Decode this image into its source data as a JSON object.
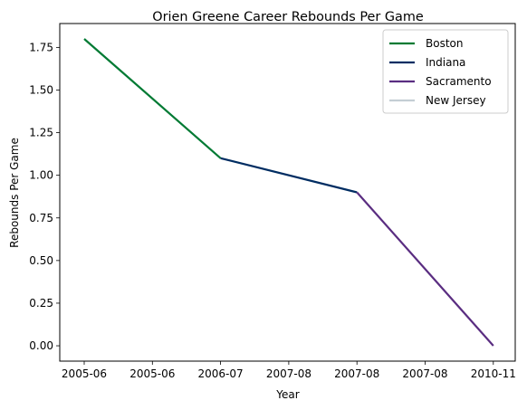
{
  "chart_data": {
    "type": "line",
    "title": "Orien Greene Career Rebounds Per Game",
    "xlabel": "Year",
    "ylabel": "Rebounds Per Game",
    "x_tick_labels": [
      "2005-06",
      "2005-06",
      "2006-07",
      "2007-08",
      "2007-08",
      "2007-08",
      "2010-11"
    ],
    "y_ticks": [
      "0.00",
      "0.25",
      "0.50",
      "0.75",
      "1.00",
      "1.25",
      "1.50",
      "1.75"
    ],
    "ylim": [
      -0.09,
      1.89
    ],
    "grid": false,
    "legend_position": "top-right",
    "series": [
      {
        "name": "Boston",
        "color": "#007a33",
        "points": [
          [
            0,
            1.8
          ],
          [
            2,
            1.1
          ]
        ]
      },
      {
        "name": "Indiana",
        "color": "#002d62",
        "points": [
          [
            2,
            1.1
          ],
          [
            4,
            0.9
          ]
        ]
      },
      {
        "name": "Sacramento",
        "color": "#5a2d81",
        "points": [
          [
            4,
            0.9
          ],
          [
            6,
            0.0
          ]
        ]
      },
      {
        "name": "New Jersey",
        "color": "#c4ced4",
        "points": []
      }
    ]
  }
}
